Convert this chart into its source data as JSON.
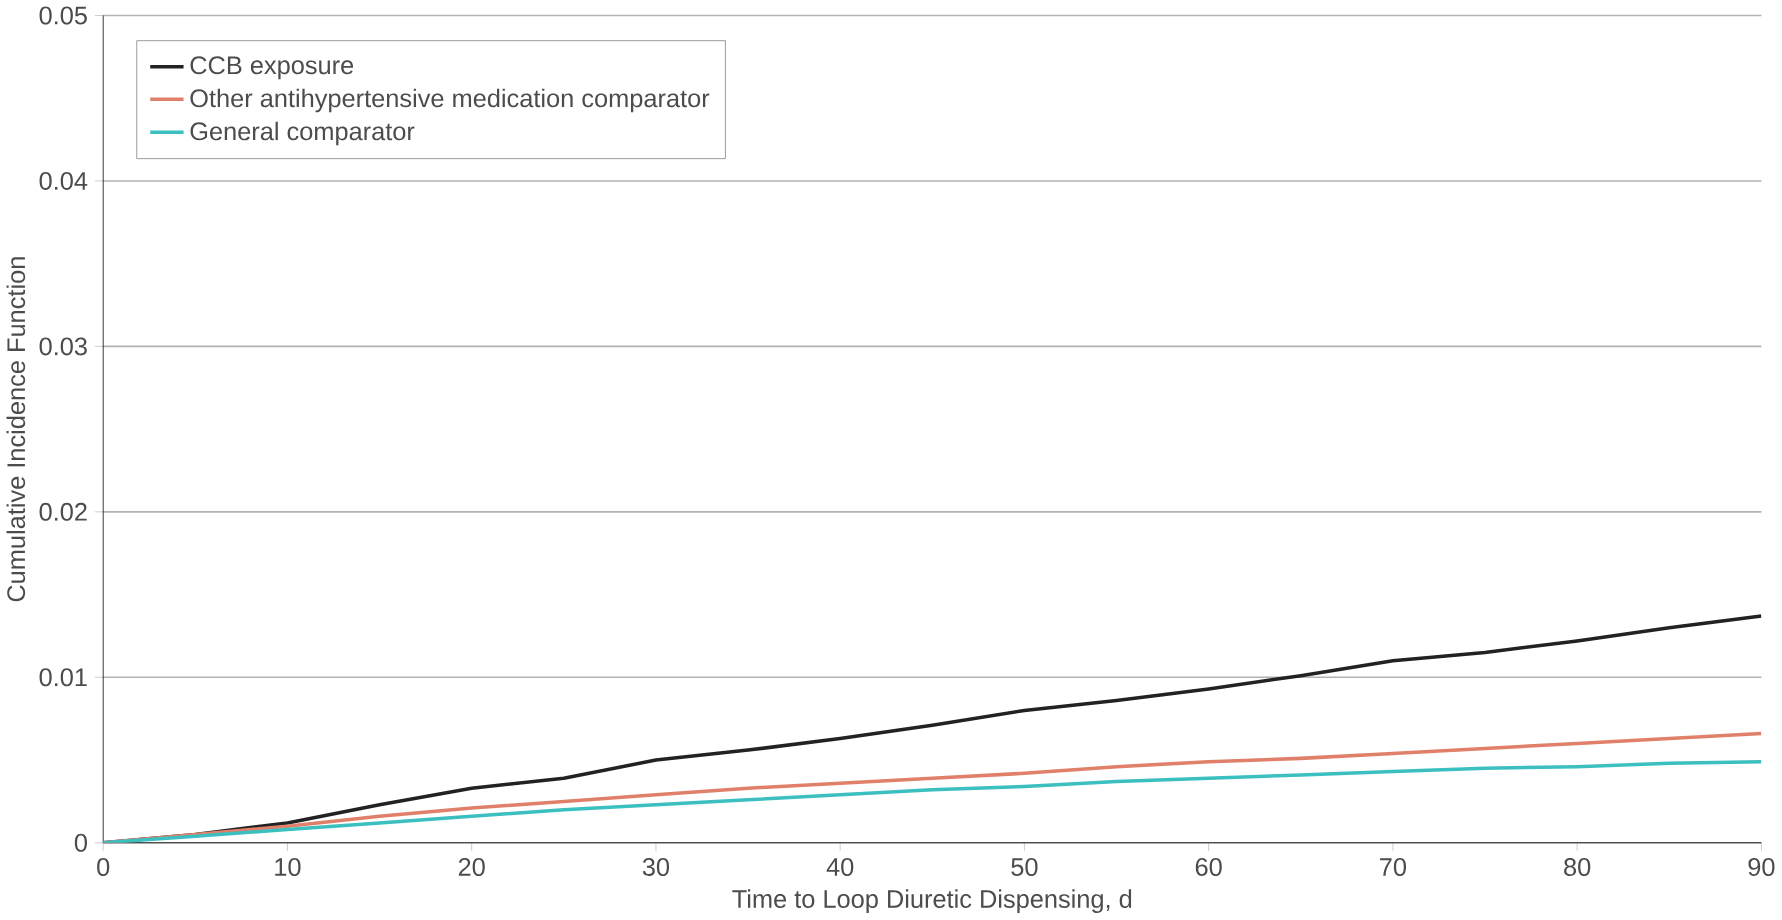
{
  "chart_data": {
    "type": "line",
    "xlabel": "Time to Loop Diuretic Dispensing, d",
    "ylabel": "Cumulative Incidence Function",
    "xlim": [
      0,
      90
    ],
    "ylim": [
      0,
      0.05
    ],
    "xticks": [
      0,
      10,
      20,
      30,
      40,
      50,
      60,
      70,
      80,
      90
    ],
    "yticks": [
      0,
      0.01,
      0.02,
      0.03,
      0.04,
      0.05
    ],
    "grid": "y",
    "legend": "top left",
    "series": [
      {
        "name": "CCB exposure",
        "color": "#222222",
        "x": [
          0,
          5,
          10,
          15,
          20,
          25,
          30,
          35,
          40,
          45,
          50,
          55,
          60,
          65,
          70,
          75,
          80,
          85,
          90
        ],
        "values": [
          0,
          0.0005,
          0.0012,
          0.0023,
          0.0033,
          0.0039,
          0.005,
          0.0056,
          0.0063,
          0.0071,
          0.008,
          0.0086,
          0.0093,
          0.0101,
          0.011,
          0.0115,
          0.0122,
          0.013,
          0.0137
        ]
      },
      {
        "name": "Other antihypertensive medication comparator",
        "color": "#e0806a",
        "x": [
          0,
          5,
          10,
          15,
          20,
          25,
          30,
          35,
          40,
          45,
          50,
          55,
          60,
          65,
          70,
          75,
          80,
          85,
          90
        ],
        "values": [
          0,
          0.0005,
          0.001,
          0.0016,
          0.0021,
          0.0025,
          0.0029,
          0.0033,
          0.0036,
          0.0039,
          0.0042,
          0.0046,
          0.0049,
          0.0051,
          0.0054,
          0.0057,
          0.006,
          0.0063,
          0.0066
        ]
      },
      {
        "name": "General comparator",
        "color": "#3cbfc0",
        "x": [
          0,
          5,
          10,
          15,
          20,
          25,
          30,
          35,
          40,
          45,
          50,
          55,
          60,
          65,
          70,
          75,
          80,
          85,
          90
        ],
        "values": [
          0,
          0.0004,
          0.0008,
          0.0012,
          0.0016,
          0.002,
          0.0023,
          0.0026,
          0.0029,
          0.0032,
          0.0034,
          0.0037,
          0.0039,
          0.0041,
          0.0043,
          0.0045,
          0.0046,
          0.0048,
          0.0049
        ]
      }
    ]
  }
}
